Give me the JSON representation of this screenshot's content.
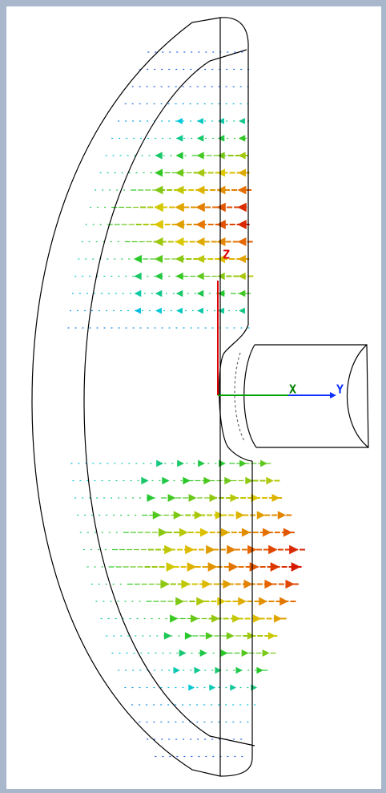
{
  "axes": {
    "z": "Z",
    "x": "X",
    "y": "Y"
  }
}
